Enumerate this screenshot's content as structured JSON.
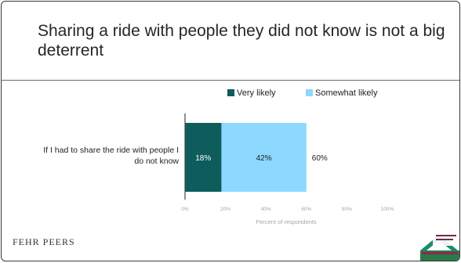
{
  "slide": {
    "title": "Sharing a ride with people they did not know is not a big deterrent"
  },
  "footer": {
    "logo_text": "FEHR PEERS"
  },
  "chart_data": {
    "type": "bar",
    "orientation": "horizontal",
    "stacked": true,
    "categories": [
      "If I had to share the ride with people I do not know"
    ],
    "series": [
      {
        "name": "Very likely",
        "values": [
          18
        ],
        "color": "#0f5c5c",
        "label": "18%"
      },
      {
        "name": "Somewhat likely",
        "values": [
          42
        ],
        "color": "#8dd8ff",
        "label": "42%"
      }
    ],
    "totals": [
      {
        "value": 60,
        "label": "60%"
      }
    ],
    "xlabel": "Percent of respondents",
    "xlim": [
      0,
      100
    ],
    "xticks": [
      "0%",
      "20%",
      "40%",
      "60%",
      "80%",
      "100%"
    ],
    "legend_position": "top",
    "grid": false
  }
}
